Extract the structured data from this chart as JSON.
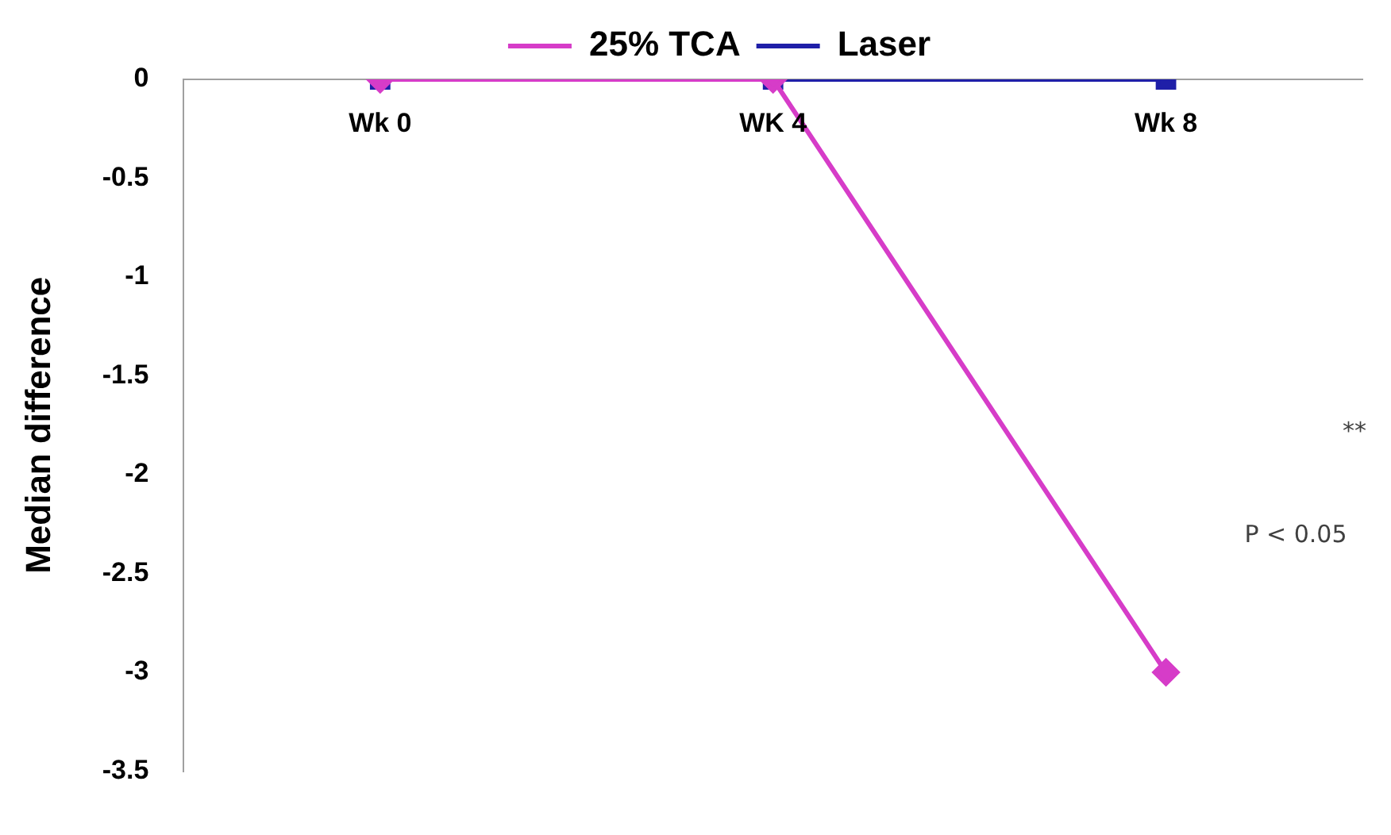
{
  "chart_data": {
    "type": "line",
    "ylabel": "Median difference",
    "categories": [
      "Wk 0",
      "WK 4",
      "Wk 8"
    ],
    "series": [
      {
        "name": "25% TCA",
        "color": "#d63cc8",
        "marker": "diamond",
        "values": [
          0,
          0,
          -3
        ]
      },
      {
        "name": "Laser",
        "color": "#1f1fa8",
        "marker": "square",
        "values": [
          0,
          0,
          0
        ]
      }
    ],
    "ylim": [
      -3.5,
      0
    ],
    "yticks": [
      -3.5,
      -3,
      -2.5,
      -2,
      -1.5,
      -1,
      -0.5,
      0
    ],
    "grid": false,
    "legend": "top",
    "annotations": [
      "**",
      "P < 0.05"
    ]
  }
}
